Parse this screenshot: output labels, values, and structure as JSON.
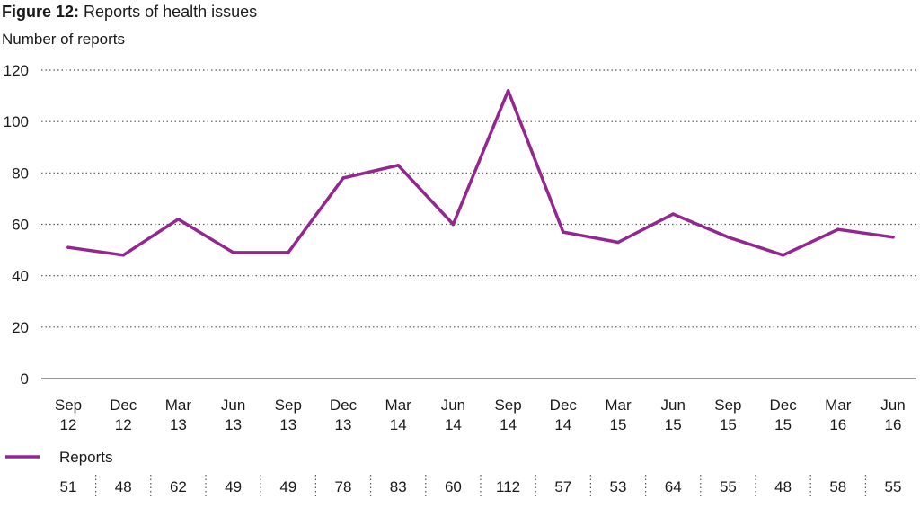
{
  "title_number": "Figure 12:",
  "title_text": "Reports of health issues",
  "chart_data": {
    "type": "line",
    "title": "Figure 12: Reports of health issues",
    "ylabel": "Number of reports",
    "xlabel": "",
    "ylim": [
      0,
      120
    ],
    "yticks": [
      0,
      20,
      40,
      60,
      80,
      100,
      120
    ],
    "grid": "horizontal dotted",
    "legend": "bottom-left",
    "categories": [
      [
        "Sep",
        "12"
      ],
      [
        "Dec",
        "12"
      ],
      [
        "Mar",
        "13"
      ],
      [
        "Jun",
        "13"
      ],
      [
        "Sep",
        "13"
      ],
      [
        "Dec",
        "13"
      ],
      [
        "Mar",
        "14"
      ],
      [
        "Jun",
        "14"
      ],
      [
        "Sep",
        "14"
      ],
      [
        "Dec",
        "14"
      ],
      [
        "Mar",
        "15"
      ],
      [
        "Jun",
        "15"
      ],
      [
        "Sep",
        "15"
      ],
      [
        "Dec",
        "15"
      ],
      [
        "Mar",
        "16"
      ],
      [
        "Jun",
        "16"
      ]
    ],
    "series": [
      {
        "name": "Reports",
        "color": "#93278f",
        "values": [
          51,
          48,
          62,
          49,
          49,
          78,
          83,
          60,
          112,
          57,
          53,
          64,
          55,
          48,
          58,
          55
        ]
      }
    ]
  }
}
